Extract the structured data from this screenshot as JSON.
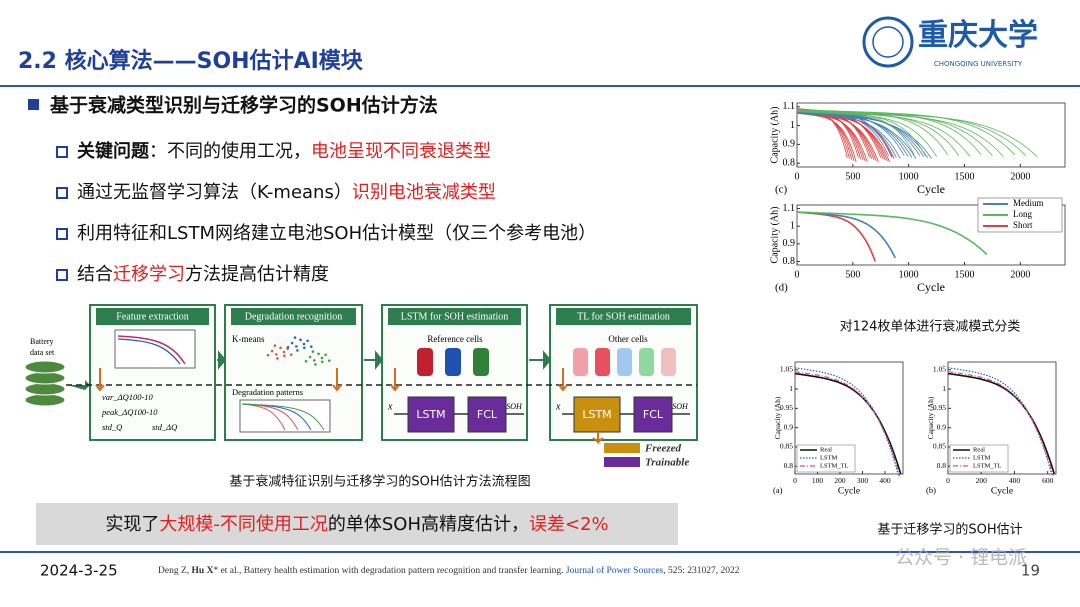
{
  "header": {
    "title": "2.2 核心算法——SOH估计AI模块",
    "logo_text": "重庆大学",
    "logo_subtext": "CHONGQING UNIVERSITY"
  },
  "main_point": "基于衰减类型识别与迁移学习的SOH估计方法",
  "bullets": [
    [
      {
        "text": "关键问题",
        "bold": true
      },
      {
        "text": "：不同的使用工况，"
      },
      {
        "text": "电池呈现不同衰退类型",
        "red": true
      }
    ],
    [
      {
        "text": "通过无监督学习算法（K-means）"
      },
      {
        "text": "识别电池衰减类型",
        "red": true
      }
    ],
    [
      {
        "text": "利用特征和LSTM网络建立电池SOH估计模型（仅三个参考电池）"
      }
    ],
    [
      {
        "text": "结合"
      },
      {
        "text": "迁移学习",
        "red": true
      },
      {
        "text": "方法提高估计精度"
      }
    ]
  ],
  "flowchart": {
    "input_label": [
      "Battery",
      "data set"
    ],
    "stages": [
      "Feature extraction",
      "Degradation recognition",
      "LSTM for SOH estimation",
      "TL for SOH estimation"
    ],
    "features": [
      "var_ΔQ100-10",
      "peak_ΔQ100-10",
      "std_Q",
      "std_ΔQ"
    ],
    "kmeans": "K-means",
    "patterns": "Degradation patterns",
    "reference_cells": "Reference cells",
    "other_cells": "Other cells",
    "input_symbol": "x",
    "lstm": "LSTM",
    "fcl": "FCL",
    "output": "SOH",
    "legend": [
      {
        "name": "Freezed",
        "color": "#c8900e"
      },
      {
        "name": "Trainable",
        "color": "#6a2c9a"
      }
    ],
    "caption": "基于衰减特征识别与迁移学习的SOH估计方法流程图"
  },
  "conclusion": [
    {
      "text": "实现了"
    },
    {
      "text": "大规模-不同使用工况",
      "red": true
    },
    {
      "text": "的单体SOH高精度估计，"
    },
    {
      "text": "误差<2%",
      "red": true
    }
  ],
  "right_top": {
    "panels": [
      {
        "label": "(c)",
        "xlabel": "Cycle",
        "ylabel": "Capacity (Ah)",
        "xlim": [
          0,
          2400
        ],
        "ylim": [
          0.78,
          1.12
        ],
        "xticks": [
          0,
          500,
          1000,
          1500,
          2000
        ],
        "yticks": [
          0.8,
          0.9,
          1,
          1.1
        ]
      },
      {
        "label": "(d)",
        "xlabel": "Cycle",
        "ylabel": "Capacity (Ah)",
        "xlim": [
          0,
          2400
        ],
        "ylim": [
          0.78,
          1.12
        ],
        "xticks": [
          0,
          500,
          1000,
          1500,
          2000
        ],
        "yticks": [
          0.8,
          0.9,
          1,
          1.1
        ],
        "legend": [
          {
            "name": "Medium",
            "color": "#4a7fb5"
          },
          {
            "name": "Long",
            "color": "#5cb85c"
          },
          {
            "name": "Short",
            "color": "#e04040"
          }
        ]
      }
    ],
    "caption": "对124枚单体进行衰减模式分类"
  },
  "right_bottom": {
    "panels": [
      {
        "label": "(a)",
        "xlabel": "Cycle",
        "ylabel": "Capacity (Ah)",
        "xlim": [
          0,
          480
        ],
        "ylim": [
          0.78,
          1.07
        ],
        "xticks": [
          0,
          100,
          200,
          300,
          400
        ],
        "yticks": [
          0.8,
          0.85,
          0.9,
          0.95,
          1,
          1.05
        ]
      },
      {
        "label": "(b)",
        "xlabel": "Cycle",
        "ylabel": "Capacity (Ah)",
        "xlim": [
          0,
          650
        ],
        "ylim": [
          0.78,
          1.07
        ],
        "xticks": [
          0,
          200,
          400,
          600
        ],
        "yticks": [
          0.8,
          0.85,
          0.9,
          0.95,
          1,
          1.05
        ]
      }
    ],
    "legend": [
      {
        "name": "Real",
        "color": "#111111"
      },
      {
        "name": "LSTM",
        "color": "#2060d0"
      },
      {
        "name": "LSTM_TL",
        "color": "#e05070"
      }
    ],
    "caption": "基于迁移学习的SOH估计"
  },
  "footer": {
    "date": "2024-3-25",
    "reference": [
      {
        "text": "Deng Z, "
      },
      {
        "text": "Hu X",
        "bold": true
      },
      {
        "text": "* et al., Battery health estimation with degradation pattern recognition and transfer learning. "
      },
      {
        "text": "Journal of Power Sources",
        "blue": true
      },
      {
        "text": ", 525: 231027, 2022"
      }
    ],
    "page": "19",
    "watermark": "公众号 · 锂电派"
  }
}
